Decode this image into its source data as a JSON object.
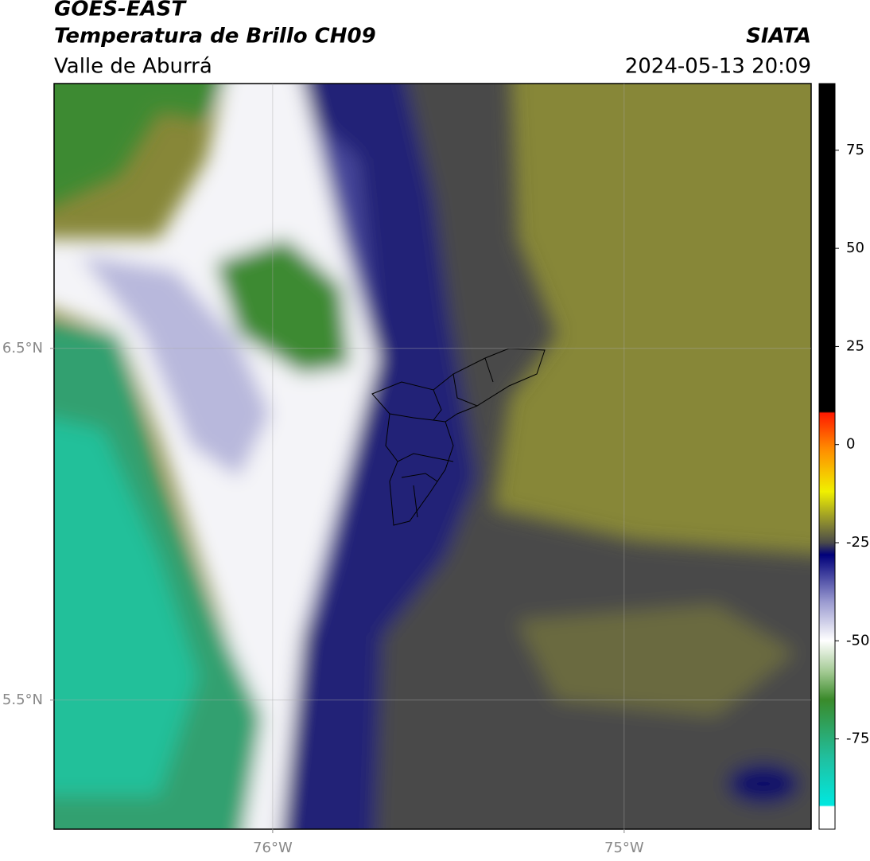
{
  "header": {
    "title": "GOES-EAST",
    "subtitle": "Temperatura de Brillo CH09",
    "region": "Valle de Aburrá",
    "source": "SIATA",
    "timestamp": "2024-05-13 20:09"
  },
  "map": {
    "xlim": [
      -76.622,
      -74.468
    ],
    "ylim": [
      5.133,
      7.253
    ],
    "xticks": [
      {
        "value": -76,
        "label": "76°W"
      },
      {
        "value": -75,
        "label": "75°W"
      }
    ],
    "yticks": [
      {
        "value": 6.5,
        "label": "6.5°N"
      },
      {
        "value": 5.5,
        "label": "5.5°N"
      }
    ]
  },
  "colorbar": {
    "lim": [
      -98,
      92
    ],
    "ticks": [
      75,
      50,
      25,
      0,
      -25,
      -50,
      -75
    ]
  }
}
